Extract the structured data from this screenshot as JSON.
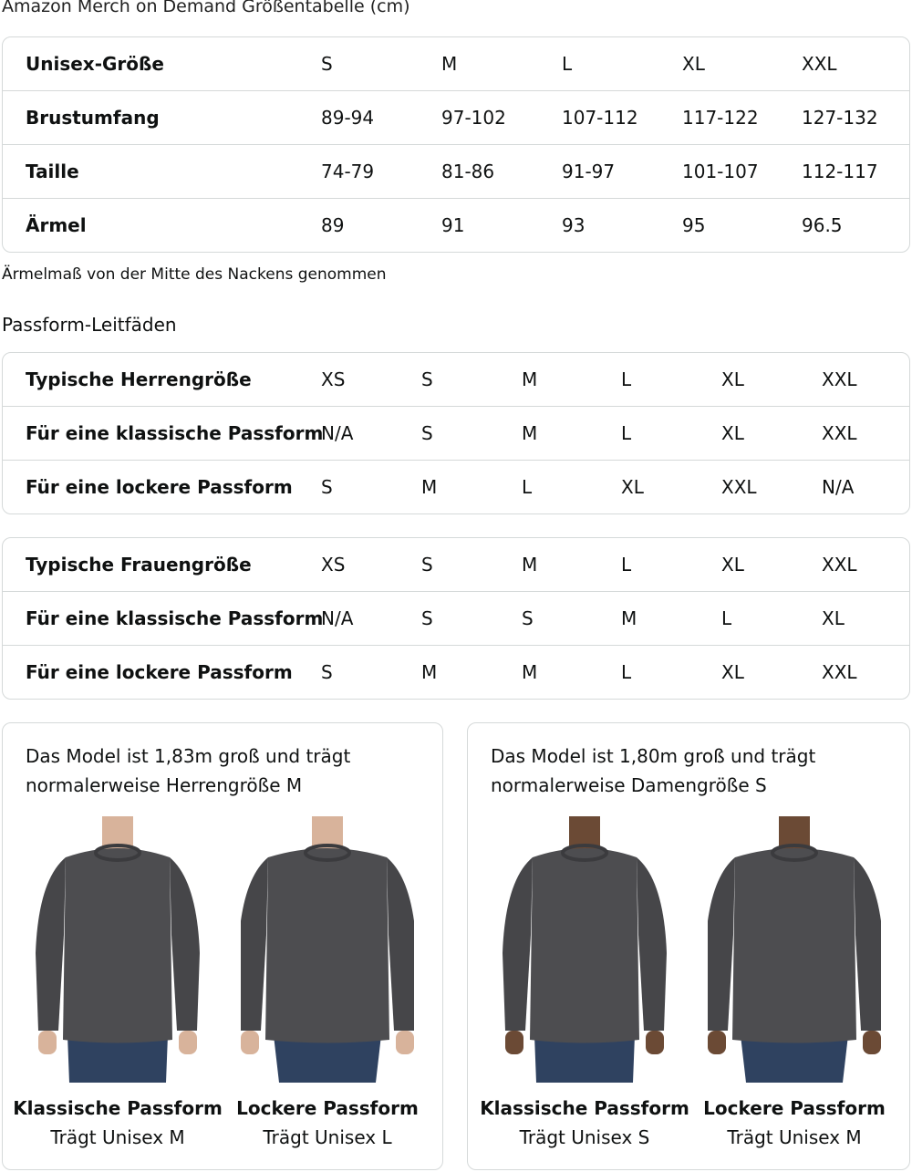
{
  "title": "Amazon Merch on Demand Größentabelle (cm)",
  "size_table": {
    "rows": [
      {
        "label": "Unisex-Größe",
        "values": [
          "S",
          "M",
          "L",
          "XL",
          "XXL"
        ]
      },
      {
        "label": "Brustumfang",
        "values": [
          "89-94",
          "97-102",
          "107-112",
          "117-122",
          "127-132"
        ]
      },
      {
        "label": "Taille",
        "values": [
          "74-79",
          "81-86",
          "91-97",
          "101-107",
          "112-117"
        ]
      },
      {
        "label": "Ärmel",
        "values": [
          "89",
          "91",
          "93",
          "95",
          "96.5"
        ]
      }
    ]
  },
  "note": "Ärmelmaß von der Mitte des Nackens genommen",
  "fit_heading": "Passform-Leitfäden",
  "men_table": {
    "rows": [
      {
        "label": "Typische Herrengröße",
        "values": [
          "XS",
          "S",
          "M",
          "L",
          "XL",
          "XXL"
        ]
      },
      {
        "label": "Für eine klassische Passform",
        "values": [
          "N/A",
          "S",
          "M",
          "L",
          "XL",
          "XXL"
        ]
      },
      {
        "label": "Für eine lockere Passform",
        "values": [
          "S",
          "M",
          "L",
          "XL",
          "XXL",
          "N/A"
        ]
      }
    ]
  },
  "women_table": {
    "rows": [
      {
        "label": "Typische Frauengröße",
        "values": [
          "XS",
          "S",
          "M",
          "L",
          "XL",
          "XXL"
        ]
      },
      {
        "label": "Für eine klassische Passform",
        "values": [
          "N/A",
          "S",
          "S",
          "M",
          "L",
          "XL"
        ]
      },
      {
        "label": "Für eine lockere Passform",
        "values": [
          "S",
          "M",
          "M",
          "L",
          "XL",
          "XXL"
        ]
      }
    ]
  },
  "cards": [
    {
      "caption1": "Das Model ist 1,83m groß und trägt",
      "caption2": "normalerweise Herrengröße M",
      "figures": [
        {
          "fit": "Klassische Passform",
          "wears": "Trägt Unisex M"
        },
        {
          "fit": "Lockere Passform",
          "wears": "Trägt Unisex L"
        }
      ]
    },
    {
      "caption1": "Das Model ist 1,80m groß und trägt",
      "caption2": "normalerweise Damengröße S",
      "figures": [
        {
          "fit": "Klassische Passform",
          "wears": "Trägt Unisex S"
        },
        {
          "fit": "Lockere Passform",
          "wears": "Trägt Unisex M"
        }
      ]
    }
  ],
  "colors": {
    "border": "#d5d9d9",
    "sweater": "#4a4a4c",
    "jeans": "#2f4260"
  }
}
